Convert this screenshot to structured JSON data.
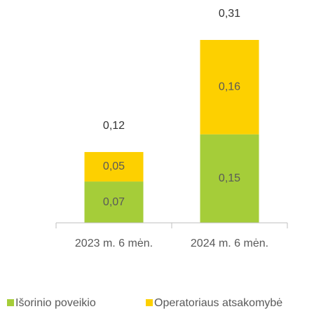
{
  "chart_data": {
    "type": "stacked_bar",
    "categories": [
      "2023 m. 6 mėn.",
      "2024 m. 6 mėn."
    ],
    "series": [
      {
        "name": "Išorinio poveikio",
        "color": "#a5cd39",
        "values": [
          0.07,
          0.15
        ],
        "value_labels": [
          "0,07",
          "0,15"
        ]
      },
      {
        "name": "Operatoriaus atsakomybė",
        "color": "#fdd000",
        "values": [
          0.05,
          0.16
        ],
        "value_labels": [
          "0,05",
          "0,16"
        ]
      }
    ],
    "total_labels": [
      "0,12",
      "0,31"
    ]
  }
}
